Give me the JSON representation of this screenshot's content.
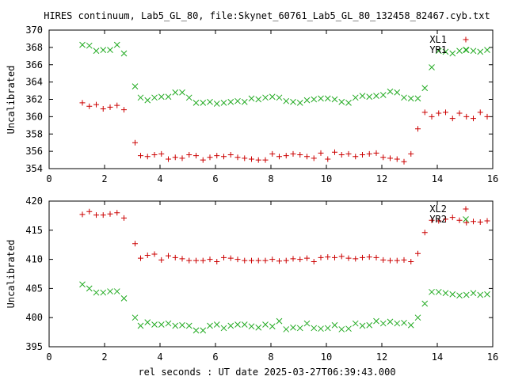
{
  "title": "HIRES continuum, Lab5_GL_80, file:Skynet_60761_Lab5_GL_80_132458_82467.cyb.txt",
  "xlabel": "rel seconds : UT date 2025-03-27T06:39:43.000",
  "colors": {
    "red": "#cc0000",
    "green": "#22aa22"
  },
  "chart_data": [
    {
      "type": "scatter",
      "ylabel": "Uncalibrated",
      "xlim": [
        0,
        16
      ],
      "ylim": [
        354,
        370
      ],
      "xticks": [
        0,
        2,
        4,
        6,
        8,
        10,
        12,
        14,
        16
      ],
      "yticks": [
        354,
        356,
        358,
        360,
        362,
        364,
        366,
        368,
        370
      ],
      "legend_position": "top-right",
      "series": [
        {
          "name": "XL1",
          "marker": "plus",
          "color": "red",
          "x": [
            1.2,
            1.45,
            1.7,
            1.95,
            2.2,
            2.45,
            2.7,
            3.1,
            3.3,
            3.55,
            3.8,
            4.05,
            4.3,
            4.55,
            4.8,
            5.05,
            5.3,
            5.55,
            5.8,
            6.05,
            6.3,
            6.55,
            6.8,
            7.05,
            7.3,
            7.55,
            7.8,
            8.05,
            8.3,
            8.55,
            8.8,
            9.05,
            9.3,
            9.55,
            9.8,
            10.05,
            10.3,
            10.55,
            10.8,
            11.05,
            11.3,
            11.55,
            11.8,
            12.05,
            12.3,
            12.55,
            12.8,
            13.05,
            13.3,
            13.55,
            13.8,
            14.05,
            14.3,
            14.55,
            14.8,
            15.05,
            15.3,
            15.55,
            15.8
          ],
          "y": [
            361.6,
            361.2,
            361.4,
            360.9,
            361.1,
            361.3,
            360.8,
            357.0,
            355.5,
            355.4,
            355.6,
            355.7,
            355.1,
            355.3,
            355.2,
            355.6,
            355.5,
            355.0,
            355.3,
            355.5,
            355.4,
            355.6,
            355.3,
            355.2,
            355.1,
            355.0,
            355.0,
            355.7,
            355.4,
            355.5,
            355.7,
            355.6,
            355.4,
            355.2,
            355.8,
            355.1,
            355.9,
            355.6,
            355.7,
            355.4,
            355.6,
            355.7,
            355.8,
            355.3,
            355.2,
            355.1,
            354.8,
            355.7,
            358.6,
            360.5,
            360.0,
            360.4,
            360.5,
            359.8,
            360.4,
            360.0,
            359.8,
            360.5,
            360.0
          ]
        },
        {
          "name": "YR1",
          "marker": "cross",
          "color": "green",
          "x": [
            1.2,
            1.45,
            1.7,
            1.95,
            2.2,
            2.45,
            2.7,
            3.1,
            3.3,
            3.55,
            3.8,
            4.05,
            4.3,
            4.55,
            4.8,
            5.05,
            5.3,
            5.55,
            5.8,
            6.05,
            6.3,
            6.55,
            6.8,
            7.05,
            7.3,
            7.55,
            7.8,
            8.05,
            8.3,
            8.55,
            8.8,
            9.05,
            9.3,
            9.55,
            9.8,
            10.05,
            10.3,
            10.55,
            10.8,
            11.05,
            11.3,
            11.55,
            11.8,
            12.05,
            12.3,
            12.55,
            12.8,
            13.05,
            13.3,
            13.55,
            13.8,
            14.05,
            14.3,
            14.55,
            14.8,
            15.05,
            15.3,
            15.55,
            15.8
          ],
          "y": [
            368.3,
            368.2,
            367.6,
            367.7,
            367.7,
            368.3,
            367.3,
            363.5,
            362.2,
            361.9,
            362.2,
            362.3,
            362.3,
            362.8,
            362.8,
            362.2,
            361.6,
            361.6,
            361.7,
            361.5,
            361.6,
            361.7,
            361.8,
            361.7,
            362.1,
            362.0,
            362.2,
            362.3,
            362.2,
            361.8,
            361.7,
            361.6,
            361.9,
            362.0,
            362.1,
            362.1,
            362.0,
            361.7,
            361.6,
            362.2,
            362.4,
            362.3,
            362.4,
            362.5,
            362.9,
            362.8,
            362.2,
            362.1,
            362.1,
            363.3,
            365.7,
            367.6,
            367.5,
            367.3,
            367.6,
            367.7,
            367.6,
            367.5,
            367.7
          ]
        }
      ]
    },
    {
      "type": "scatter",
      "ylabel": "Uncalibrated",
      "xlim": [
        0,
        16
      ],
      "ylim": [
        395,
        420
      ],
      "xticks": [
        0,
        2,
        4,
        6,
        8,
        10,
        12,
        14,
        16
      ],
      "yticks": [
        395,
        400,
        405,
        410,
        415,
        420
      ],
      "legend_position": "top-right",
      "series": [
        {
          "name": "XL2",
          "marker": "plus",
          "color": "red",
          "x": [
            1.2,
            1.45,
            1.7,
            1.95,
            2.2,
            2.45,
            2.7,
            3.1,
            3.3,
            3.55,
            3.8,
            4.05,
            4.3,
            4.55,
            4.8,
            5.05,
            5.3,
            5.55,
            5.8,
            6.05,
            6.3,
            6.55,
            6.8,
            7.05,
            7.3,
            7.55,
            7.8,
            8.05,
            8.3,
            8.55,
            8.8,
            9.05,
            9.3,
            9.55,
            9.8,
            10.05,
            10.3,
            10.55,
            10.8,
            11.05,
            11.3,
            11.55,
            11.8,
            12.05,
            12.3,
            12.55,
            12.8,
            13.05,
            13.3,
            13.55,
            13.8,
            14.05,
            14.3,
            14.55,
            14.8,
            15.05,
            15.3,
            15.55,
            15.8
          ],
          "y": [
            417.7,
            418.2,
            417.6,
            417.6,
            417.8,
            418.0,
            417.1,
            412.7,
            410.2,
            410.7,
            410.9,
            409.9,
            410.6,
            410.3,
            410.1,
            409.8,
            409.8,
            409.8,
            410.0,
            409.6,
            410.3,
            410.2,
            410.0,
            409.8,
            409.8,
            409.8,
            409.8,
            410.0,
            409.7,
            409.8,
            410.1,
            410.0,
            410.2,
            409.6,
            410.3,
            410.4,
            410.3,
            410.5,
            410.2,
            410.1,
            410.3,
            410.4,
            410.3,
            409.9,
            409.8,
            409.8,
            409.9,
            409.6,
            411.0,
            414.6,
            416.7,
            416.6,
            416.9,
            417.2,
            416.7,
            416.3,
            416.5,
            416.4,
            416.6
          ]
        },
        {
          "name": "YR2",
          "marker": "cross",
          "color": "green",
          "x": [
            1.2,
            1.45,
            1.7,
            1.95,
            2.2,
            2.45,
            2.7,
            3.1,
            3.3,
            3.55,
            3.8,
            4.05,
            4.3,
            4.55,
            4.8,
            5.05,
            5.3,
            5.55,
            5.8,
            6.05,
            6.3,
            6.55,
            6.8,
            7.05,
            7.3,
            7.55,
            7.8,
            8.05,
            8.3,
            8.55,
            8.8,
            9.05,
            9.3,
            9.55,
            9.8,
            10.05,
            10.3,
            10.55,
            10.8,
            11.05,
            11.3,
            11.55,
            11.8,
            12.05,
            12.3,
            12.55,
            12.8,
            13.05,
            13.3,
            13.55,
            13.8,
            14.05,
            14.3,
            14.55,
            14.8,
            15.05,
            15.3,
            15.55,
            15.8
          ],
          "y": [
            405.7,
            405.0,
            404.3,
            404.3,
            404.5,
            404.5,
            403.3,
            400.0,
            398.6,
            399.2,
            398.8,
            398.8,
            399.0,
            398.6,
            398.7,
            398.6,
            397.8,
            397.8,
            398.6,
            398.8,
            398.2,
            398.6,
            398.8,
            398.8,
            398.5,
            398.3,
            398.8,
            398.5,
            399.4,
            398.0,
            398.3,
            398.2,
            399.0,
            398.2,
            398.1,
            398.2,
            398.7,
            398.0,
            398.1,
            399.0,
            398.6,
            398.7,
            399.4,
            399.0,
            399.3,
            399.0,
            399.1,
            398.7,
            400.0,
            402.4,
            404.4,
            404.4,
            404.2,
            404.0,
            403.8,
            403.9,
            404.2,
            403.9,
            404.0
          ]
        }
      ]
    }
  ]
}
